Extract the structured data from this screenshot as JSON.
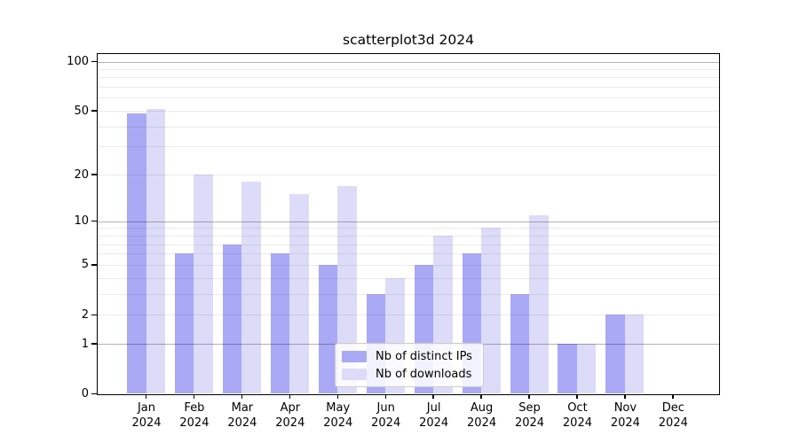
{
  "title": "scatterplot3d 2024",
  "chart_data": {
    "type": "bar",
    "title": "scatterplot3d 2024",
    "scale": "log10(value+1)",
    "grid": true,
    "legend_position": "lower center",
    "categories": [
      "Jan",
      "Feb",
      "Mar",
      "Apr",
      "May",
      "Jun",
      "Jul",
      "Aug",
      "Sep",
      "Oct",
      "Nov",
      "Dec"
    ],
    "category_sublabel": "2024",
    "series": [
      {
        "name": "Nb of distinct IPs",
        "color": "#a9a9f6",
        "values": [
          48,
          6,
          7,
          6,
          5,
          3,
          5,
          6,
          3,
          1,
          2,
          0
        ]
      },
      {
        "name": "Nb of downloads",
        "color": "#dcdcf9",
        "values": [
          51,
          20,
          18,
          15,
          17,
          4,
          8,
          9,
          11,
          1,
          2,
          0
        ]
      }
    ],
    "y_ticks": [
      100,
      50,
      20,
      10,
      5,
      2,
      1,
      0
    ],
    "y_major_gridlines": [
      1,
      10,
      100
    ],
    "y_minor_gridlines": [
      2,
      3,
      4,
      5,
      6,
      7,
      8,
      9,
      20,
      30,
      40,
      50,
      60,
      70,
      80,
      90
    ],
    "ylim": [
      0,
      100
    ]
  },
  "colors": {
    "background": "#ffffff",
    "spine": "#000000",
    "major_grid": "#b3b3b3",
    "minor_grid": "#ebebeb",
    "bar_distinct_ips": "#a9a9f6",
    "bar_downloads": "#dcdcf9"
  }
}
